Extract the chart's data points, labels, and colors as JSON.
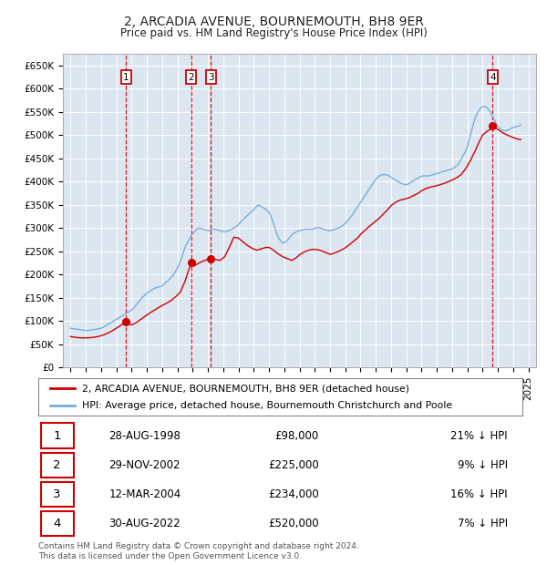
{
  "title": "2, ARCADIA AVENUE, BOURNEMOUTH, BH8 9ER",
  "subtitle": "Price paid vs. HM Land Registry's House Price Index (HPI)",
  "legend_line1": "2, ARCADIA AVENUE, BOURNEMOUTH, BH8 9ER (detached house)",
  "legend_line2": "HPI: Average price, detached house, Bournemouth Christchurch and Poole",
  "footer": "Contains HM Land Registry data © Crown copyright and database right 2024.\nThis data is licensed under the Open Government Licence v3.0.",
  "transactions": [
    {
      "num": 1,
      "date": "28-AUG-1998",
      "price": 98000,
      "pct": "21%",
      "x_year": 1998.65
    },
    {
      "num": 2,
      "date": "29-NOV-2002",
      "price": 225000,
      "pct": "9%",
      "x_year": 2002.91
    },
    {
      "num": 3,
      "date": "12-MAR-2004",
      "price": 234000,
      "pct": "16%",
      "x_year": 2004.2
    },
    {
      "num": 4,
      "date": "30-AUG-2022",
      "price": 520000,
      "pct": "7%",
      "x_year": 2022.65
    }
  ],
  "transaction_marker_values": [
    98000,
    225000,
    234000,
    520000
  ],
  "ylim": [
    0,
    675000
  ],
  "xlim_start": 1994.5,
  "xlim_end": 2025.5,
  "yticks": [
    0,
    50000,
    100000,
    150000,
    200000,
    250000,
    300000,
    350000,
    400000,
    450000,
    500000,
    550000,
    600000,
    650000
  ],
  "ytick_labels": [
    "£0",
    "£50K",
    "£100K",
    "£150K",
    "£200K",
    "£250K",
    "£300K",
    "£350K",
    "£400K",
    "£450K",
    "£500K",
    "£550K",
    "£600K",
    "£650K"
  ],
  "xticks": [
    1995,
    1996,
    1997,
    1998,
    1999,
    2000,
    2001,
    2002,
    2003,
    2004,
    2005,
    2006,
    2007,
    2008,
    2009,
    2010,
    2011,
    2012,
    2013,
    2014,
    2015,
    2016,
    2017,
    2018,
    2019,
    2020,
    2021,
    2022,
    2023,
    2024,
    2025
  ],
  "bg_color": "#dce6f1",
  "line_color_red": "#cc0000",
  "line_color_blue": "#7aadd4",
  "grid_color": "#ffffff",
  "marker_color": "#cc0000",
  "box_color": "#cc0000",
  "hpi_years": [
    1995.0,
    1995.1,
    1995.2,
    1995.3,
    1995.4,
    1995.5,
    1995.6,
    1995.7,
    1995.8,
    1995.9,
    1996.0,
    1996.1,
    1996.2,
    1996.3,
    1996.4,
    1996.5,
    1996.6,
    1996.7,
    1996.8,
    1996.9,
    1997.0,
    1997.1,
    1997.2,
    1997.3,
    1997.4,
    1997.5,
    1997.6,
    1997.7,
    1997.8,
    1997.9,
    1998.0,
    1998.1,
    1998.2,
    1998.3,
    1998.4,
    1998.5,
    1998.6,
    1998.7,
    1998.8,
    1998.9,
    1999.0,
    1999.1,
    1999.2,
    1999.3,
    1999.4,
    1999.5,
    1999.6,
    1999.7,
    1999.8,
    1999.9,
    2000.0,
    2000.1,
    2000.2,
    2000.3,
    2000.4,
    2000.5,
    2000.6,
    2000.7,
    2000.8,
    2000.9,
    2001.0,
    2001.1,
    2001.2,
    2001.3,
    2001.4,
    2001.5,
    2001.6,
    2001.7,
    2001.8,
    2001.9,
    2002.0,
    2002.1,
    2002.2,
    2002.3,
    2002.4,
    2002.5,
    2002.6,
    2002.7,
    2002.8,
    2002.9,
    2003.0,
    2003.1,
    2003.2,
    2003.3,
    2003.4,
    2003.5,
    2003.6,
    2003.7,
    2003.8,
    2003.9,
    2004.0,
    2004.1,
    2004.2,
    2004.3,
    2004.4,
    2004.5,
    2004.6,
    2004.7,
    2004.8,
    2004.9,
    2005.0,
    2005.1,
    2005.2,
    2005.3,
    2005.4,
    2005.5,
    2005.6,
    2005.7,
    2005.8,
    2005.9,
    2006.0,
    2006.1,
    2006.2,
    2006.3,
    2006.4,
    2006.5,
    2006.6,
    2006.7,
    2006.8,
    2006.9,
    2007.0,
    2007.1,
    2007.2,
    2007.3,
    2007.4,
    2007.5,
    2007.6,
    2007.7,
    2007.8,
    2007.9,
    2008.0,
    2008.1,
    2008.2,
    2008.3,
    2008.4,
    2008.5,
    2008.6,
    2008.7,
    2008.8,
    2008.9,
    2009.0,
    2009.1,
    2009.2,
    2009.3,
    2009.4,
    2009.5,
    2009.6,
    2009.7,
    2009.8,
    2009.9,
    2010.0,
    2010.1,
    2010.2,
    2010.3,
    2010.4,
    2010.5,
    2010.6,
    2010.7,
    2010.8,
    2010.9,
    2011.0,
    2011.1,
    2011.2,
    2011.3,
    2011.4,
    2011.5,
    2011.6,
    2011.7,
    2011.8,
    2011.9,
    2012.0,
    2012.1,
    2012.2,
    2012.3,
    2012.4,
    2012.5,
    2012.6,
    2012.7,
    2012.8,
    2012.9,
    2013.0,
    2013.1,
    2013.2,
    2013.3,
    2013.4,
    2013.5,
    2013.6,
    2013.7,
    2013.8,
    2013.9,
    2014.0,
    2014.1,
    2014.2,
    2014.3,
    2014.4,
    2014.5,
    2014.6,
    2014.7,
    2014.8,
    2014.9,
    2015.0,
    2015.1,
    2015.2,
    2015.3,
    2015.4,
    2015.5,
    2015.6,
    2015.7,
    2015.8,
    2015.9,
    2016.0,
    2016.1,
    2016.2,
    2016.3,
    2016.4,
    2016.5,
    2016.6,
    2016.7,
    2016.8,
    2016.9,
    2017.0,
    2017.1,
    2017.2,
    2017.3,
    2017.4,
    2017.5,
    2017.6,
    2017.7,
    2017.8,
    2017.9,
    2018.0,
    2018.1,
    2018.2,
    2018.3,
    2018.4,
    2018.5,
    2018.6,
    2018.7,
    2018.8,
    2018.9,
    2019.0,
    2019.1,
    2019.2,
    2019.3,
    2019.4,
    2019.5,
    2019.6,
    2019.7,
    2019.8,
    2019.9,
    2020.0,
    2020.1,
    2020.2,
    2020.3,
    2020.4,
    2020.5,
    2020.6,
    2020.7,
    2020.8,
    2020.9,
    2021.0,
    2021.1,
    2021.2,
    2021.3,
    2021.4,
    2021.5,
    2021.6,
    2021.7,
    2021.8,
    2021.9,
    2022.0,
    2022.1,
    2022.2,
    2022.3,
    2022.4,
    2022.5,
    2022.6,
    2022.7,
    2022.8,
    2022.9,
    2023.0,
    2023.1,
    2023.2,
    2023.3,
    2023.4,
    2023.5,
    2023.6,
    2023.7,
    2023.8,
    2023.9,
    2024.0,
    2024.1,
    2024.2,
    2024.3,
    2024.4,
    2024.5
  ],
  "hpi_values": [
    84000,
    83500,
    83000,
    82500,
    82000,
    81500,
    81000,
    80500,
    80000,
    79500,
    79000,
    79200,
    79500,
    80000,
    80500,
    81000,
    81500,
    82000,
    82500,
    83000,
    84000,
    85500,
    87000,
    89000,
    91000,
    93000,
    95000,
    97000,
    99000,
    101000,
    103000,
    105000,
    107000,
    109000,
    111000,
    113000,
    115000,
    117000,
    119000,
    121000,
    123000,
    126000,
    130000,
    134000,
    138000,
    142000,
    146000,
    150000,
    153000,
    156000,
    159000,
    162000,
    164000,
    166000,
    168000,
    170000,
    171000,
    172000,
    173000,
    174000,
    175000,
    178000,
    181000,
    184000,
    187000,
    190000,
    194000,
    198000,
    202000,
    208000,
    214000,
    220000,
    228000,
    238000,
    248000,
    258000,
    265000,
    271000,
    277000,
    283000,
    287000,
    291000,
    295000,
    298000,
    299000,
    299000,
    298000,
    297000,
    296000,
    295000,
    294000,
    295000,
    296000,
    297000,
    297000,
    297000,
    296000,
    295000,
    294000,
    293000,
    292000,
    292000,
    292000,
    293000,
    294000,
    296000,
    298000,
    300000,
    302000,
    304000,
    307000,
    311000,
    315000,
    318000,
    321000,
    324000,
    327000,
    330000,
    333000,
    336000,
    339000,
    343000,
    347000,
    349000,
    348000,
    346000,
    344000,
    342000,
    340000,
    337000,
    334000,
    327000,
    319000,
    309000,
    299000,
    289000,
    281000,
    275000,
    270000,
    268000,
    268000,
    270000,
    273000,
    277000,
    281000,
    285000,
    288000,
    290000,
    292000,
    293000,
    294000,
    295000,
    296000,
    297000,
    297000,
    297000,
    297000,
    297000,
    297000,
    298000,
    299000,
    300000,
    301000,
    300000,
    299000,
    298000,
    297000,
    296000,
    295000,
    294000,
    294000,
    295000,
    296000,
    297000,
    298000,
    299000,
    300000,
    302000,
    304000,
    307000,
    310000,
    313000,
    317000,
    321000,
    325000,
    330000,
    335000,
    340000,
    345000,
    350000,
    355000,
    360000,
    365000,
    370000,
    375000,
    380000,
    385000,
    390000,
    395000,
    400000,
    405000,
    408000,
    411000,
    413000,
    414000,
    415000,
    415000,
    414000,
    413000,
    411000,
    409000,
    407000,
    405000,
    403000,
    401000,
    399000,
    397000,
    395000,
    394000,
    393000,
    393000,
    394000,
    396000,
    398000,
    400000,
    402000,
    404000,
    406000,
    408000,
    410000,
    411000,
    412000,
    412000,
    412000,
    412000,
    412000,
    413000,
    414000,
    415000,
    416000,
    417000,
    418000,
    419000,
    420000,
    421000,
    422000,
    423000,
    424000,
    425000,
    426000,
    427000,
    429000,
    431000,
    434000,
    437000,
    442000,
    448000,
    455000,
    460000,
    466000,
    475000,
    487000,
    500000,
    512000,
    524000,
    535000,
    543000,
    550000,
    555000,
    559000,
    561000,
    562000,
    561000,
    558000,
    554000,
    549000,
    543000,
    537000,
    530000,
    524000,
    519000,
    515000,
    512000,
    510000,
    509000,
    509000,
    510000,
    511000,
    513000,
    515000,
    516000,
    517000,
    518000,
    519000,
    520000,
    521000
  ],
  "red_years": [
    1995.0,
    1995.2,
    1995.4,
    1995.6,
    1995.8,
    1996.0,
    1996.2,
    1996.4,
    1996.6,
    1996.8,
    1997.0,
    1997.2,
    1997.4,
    1997.6,
    1997.8,
    1998.0,
    1998.2,
    1998.4,
    1998.65,
    1999.0,
    1999.3,
    1999.6,
    1999.9,
    2000.2,
    2000.5,
    2000.8,
    2001.0,
    2001.3,
    2001.6,
    2001.9,
    2002.2,
    2002.5,
    2002.75,
    2002.91,
    2003.1,
    2003.4,
    2003.7,
    2004.0,
    2004.2,
    2004.5,
    2004.8,
    2005.1,
    2005.4,
    2005.7,
    2006.0,
    2006.3,
    2006.6,
    2006.9,
    2007.2,
    2007.5,
    2007.8,
    2008.0,
    2008.3,
    2008.6,
    2008.9,
    2009.2,
    2009.5,
    2009.8,
    2010.0,
    2010.3,
    2010.6,
    2010.9,
    2011.2,
    2011.5,
    2011.8,
    2012.0,
    2012.3,
    2012.6,
    2012.9,
    2013.2,
    2013.5,
    2013.8,
    2014.0,
    2014.3,
    2014.6,
    2014.9,
    2015.2,
    2015.5,
    2015.8,
    2016.0,
    2016.3,
    2016.6,
    2016.9,
    2017.2,
    2017.5,
    2017.8,
    2018.0,
    2018.3,
    2018.6,
    2018.9,
    2019.2,
    2019.5,
    2019.8,
    2020.0,
    2020.3,
    2020.6,
    2020.9,
    2021.2,
    2021.5,
    2021.8,
    2022.0,
    2022.3,
    2022.5,
    2022.65,
    2023.0,
    2023.3,
    2023.6,
    2023.9,
    2024.2,
    2024.5
  ],
  "red_values": [
    66000,
    65000,
    64000,
    63500,
    63000,
    63000,
    63500,
    64000,
    65000,
    66000,
    68000,
    70000,
    73000,
    76000,
    80000,
    84000,
    88000,
    93000,
    98000,
    91000,
    96000,
    103000,
    110000,
    117000,
    123000,
    129000,
    133000,
    138000,
    144000,
    152000,
    162000,
    185000,
    210000,
    225000,
    218000,
    224000,
    229000,
    232000,
    234000,
    232000,
    230000,
    238000,
    258000,
    280000,
    278000,
    270000,
    262000,
    256000,
    252000,
    255000,
    258000,
    258000,
    252000,
    244000,
    238000,
    234000,
    230000,
    236000,
    242000,
    248000,
    252000,
    254000,
    253000,
    250000,
    246000,
    243000,
    246000,
    250000,
    255000,
    262000,
    270000,
    278000,
    286000,
    295000,
    304000,
    312000,
    320000,
    330000,
    340000,
    348000,
    355000,
    360000,
    362000,
    365000,
    370000,
    375000,
    380000,
    385000,
    388000,
    390000,
    393000,
    396000,
    400000,
    403000,
    408000,
    415000,
    428000,
    445000,
    465000,
    487000,
    500000,
    508000,
    512000,
    520000,
    512000,
    505000,
    500000,
    496000,
    492000,
    490000
  ]
}
